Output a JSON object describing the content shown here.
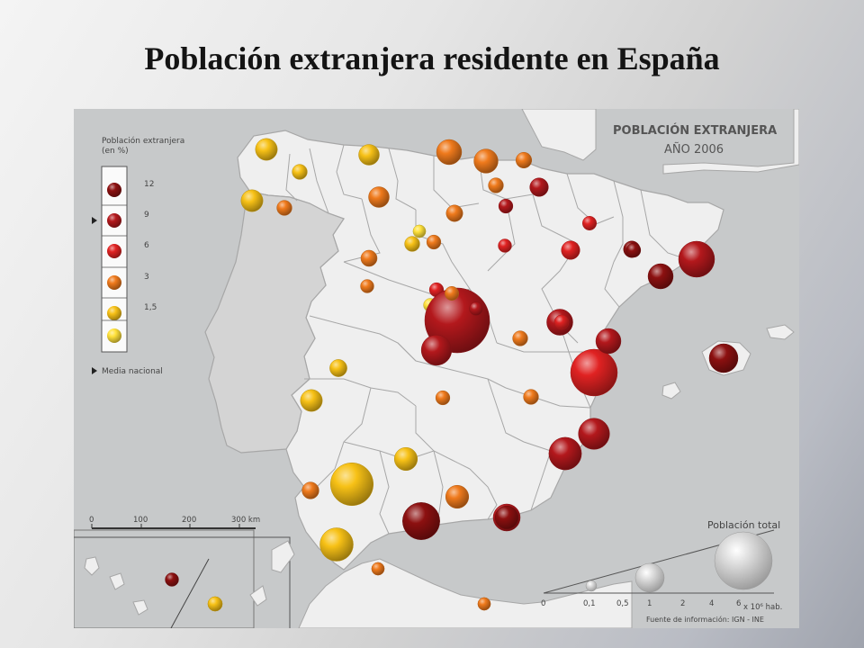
{
  "slide": {
    "title": "Población extranjera residente en España"
  },
  "map": {
    "heading": "POBLACIÓN EXTRANJERA",
    "year": "AÑO 2006",
    "source": "Fuente de información: IGN - INE",
    "colors": {
      "land": "#efefef",
      "sea": "#c7c9ca",
      "border": "#a7a7a7"
    }
  },
  "legend": {
    "title_line1": "Población extranjera",
    "title_line2": "(en %)",
    "classes": [
      {
        "label": "12",
        "color": "#8c1010"
      },
      {
        "label": "9",
        "color": "#b3181c"
      },
      {
        "label": "6",
        "color": "#e02222"
      },
      {
        "label": "3",
        "color": "#ef7a1c"
      },
      {
        "label": "1,5",
        "color": "#f7c116"
      },
      {
        "label": "",
        "color": "#ffe13a"
      }
    ],
    "national_mean_label": "Media nacional",
    "national_mean_class": "9"
  },
  "scale_bar": {
    "ticks": [
      "0",
      "100",
      "200",
      "300 km"
    ]
  },
  "population_legend": {
    "title": "Población total",
    "ticks": [
      "0",
      "0,1",
      "0,5",
      "1",
      "2",
      "4",
      "6"
    ],
    "unit": "x 10⁶ hab."
  },
  "symbols": [
    {
      "class": 4,
      "pop": 0.35
    },
    {
      "class": 4,
      "pop": 0.12
    },
    {
      "class": 4,
      "pop": 0.35
    },
    {
      "class": 4,
      "pop": 0.3
    },
    {
      "class": 3,
      "pop": 0.08
    },
    {
      "class": 3,
      "pop": 0.3
    },
    {
      "class": 3,
      "pop": 0.5
    },
    {
      "class": 3,
      "pop": 0.45
    },
    {
      "class": 3,
      "pop": 0.12
    },
    {
      "class": 1,
      "pop": 0.22
    },
    {
      "class": 3,
      "pop": 0.16
    },
    {
      "class": 3,
      "pop": 0.14
    },
    {
      "class": 1,
      "pop": 0.1
    },
    {
      "class": 2,
      "pop": 0.06
    },
    {
      "class": 0,
      "pop": 0.16
    },
    {
      "class": 1,
      "pop": 1.2
    },
    {
      "class": 0,
      "pop": 0.5
    },
    {
      "class": 2,
      "pop": 0.22
    },
    {
      "class": 4,
      "pop": 0.08
    },
    {
      "class": 5,
      "pop": 0.04
    },
    {
      "class": 3,
      "pop": 0.15
    },
    {
      "class": 3,
      "pop": 0.1
    },
    {
      "class": 2,
      "pop": 0.05
    },
    {
      "class": 3,
      "pop": 0.05
    },
    {
      "class": 2,
      "pop": 0.1
    },
    {
      "class": 5,
      "pop": 0.05
    },
    {
      "class": 2,
      "pop": 0.06
    },
    {
      "class": 1,
      "pop": 5.5
    },
    {
      "class": 2,
      "pop": 0.16
    },
    {
      "class": 1,
      "pop": 0.05
    },
    {
      "class": 3,
      "pop": 0.12
    },
    {
      "class": 4,
      "pop": 0.18
    },
    {
      "class": 3,
      "pop": 0.1
    },
    {
      "class": 3,
      "pop": 0.08
    },
    {
      "class": 2,
      "pop": 2.2
    },
    {
      "class": 1,
      "pop": 0.5
    },
    {
      "class": 1,
      "pop": 0.6
    },
    {
      "class": 1,
      "pop": 0.8
    },
    {
      "class": 0,
      "pop": 0.7
    },
    {
      "class": 4,
      "pop": 0.4
    },
    {
      "class": 4,
      "pop": 0.35
    },
    {
      "class": 4,
      "pop": 1.8
    },
    {
      "class": 3,
      "pop": 0.17
    },
    {
      "class": 3,
      "pop": 0.4
    },
    {
      "class": 0,
      "pop": 1.3
    },
    {
      "class": 1,
      "pop": 0.6
    },
    {
      "class": 4,
      "pop": 1.0
    },
    {
      "class": 3,
      "pop": 0.04
    },
    {
      "class": 3,
      "pop": 0.04
    },
    {
      "class": 1,
      "pop": 0.85
    },
    {
      "class": 1,
      "pop": 0.95
    },
    {
      "class": 1,
      "pop": 0.55
    },
    {
      "class": 1,
      "pop": 0.8
    },
    {
      "class": 0,
      "pop": 0.4
    },
    {
      "class": 2,
      "pop": 0.07
    },
    {
      "class": 0,
      "pop": 0.1
    },
    {
      "class": 0,
      "pop": 0.05
    },
    {
      "class": 4,
      "pop": 0.07
    },
    {
      "class": 3,
      "pop": 0.06
    }
  ]
}
